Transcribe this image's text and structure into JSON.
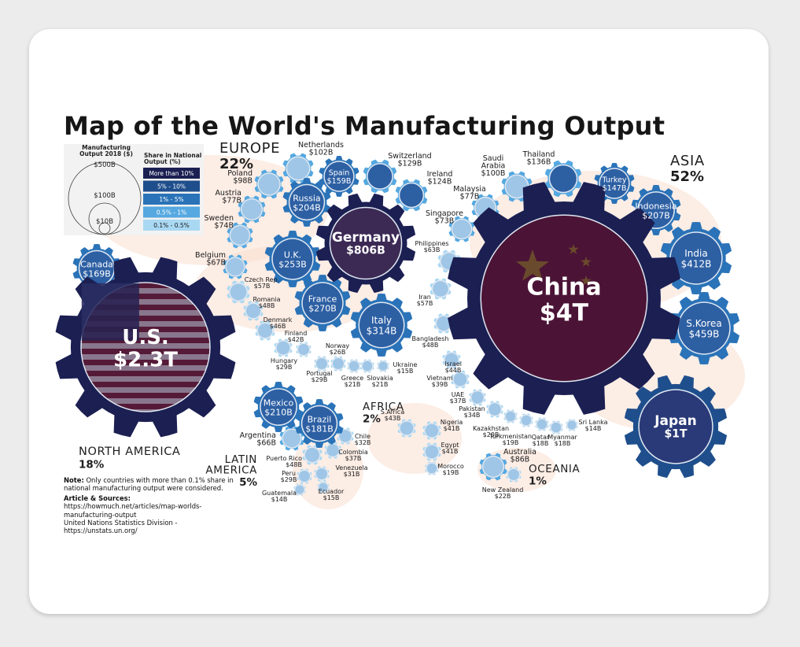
{
  "title": "Map of the World's Manufacturing Output",
  "legend": {
    "size_title": "Manufacturing\nOutput 2018 ($)",
    "size_labels": [
      "$500B",
      "$100B",
      "$10B"
    ],
    "share_title": "Share in National\nOutput (%)",
    "share_items": [
      {
        "label": "More than 10%",
        "color": "#1b1f52"
      },
      {
        "label": "5% - 10%",
        "color": "#1f4e8c"
      },
      {
        "label": "1% - 5%",
        "color": "#2a73b8"
      },
      {
        "label": "0.5% - 1%",
        "color": "#56a8e0"
      },
      {
        "label": "0.1% - 0.5%",
        "color": "#a9d8f3"
      }
    ]
  },
  "regions": [
    {
      "name": "EUROPE",
      "share": "22%"
    },
    {
      "name": "ASIA",
      "share": "52%"
    },
    {
      "name": "NORTH AMERICA",
      "share": "18%"
    },
    {
      "name": "LATIN\nAMERICA",
      "share": "5%"
    },
    {
      "name": "AFRICA",
      "share": "2%"
    },
    {
      "name": "OCEANIA",
      "share": "1%"
    }
  ],
  "countries": [
    {
      "name": "U.S.",
      "value": "$2.3T",
      "share_class": "More than 10%",
      "label_pos": "inside"
    },
    {
      "name": "China",
      "value": "$4T",
      "share_class": "More than 10%",
      "label_pos": "inside"
    },
    {
      "name": "Japan",
      "value": "$1T",
      "share_class": "5% - 10%",
      "label_pos": "inside"
    },
    {
      "name": "Germany",
      "value": "$806B",
      "share_class": "More than 10%",
      "label_pos": "inside"
    },
    {
      "name": "S.Korea",
      "value": "$459B",
      "share_class": "1% - 5%",
      "label_pos": "inside"
    },
    {
      "name": "India",
      "value": "$412B",
      "share_class": "1% - 5%",
      "label_pos": "inside"
    },
    {
      "name": "Italy",
      "value": "$314B",
      "share_class": "1% - 5%",
      "label_pos": "inside"
    },
    {
      "name": "France",
      "value": "$270B",
      "share_class": "1% - 5%",
      "label_pos": "inside"
    },
    {
      "name": "U.K.",
      "value": "$253B",
      "share_class": "1% - 5%",
      "label_pos": "inside"
    },
    {
      "name": "Mexico",
      "value": "$210B",
      "share_class": "1% - 5%",
      "label_pos": "inside"
    },
    {
      "name": "Indonesia",
      "value": "$207B",
      "share_class": "1% - 5%",
      "label_pos": "inside"
    },
    {
      "name": "Russia",
      "value": "$204B",
      "share_class": "1% - 5%",
      "label_pos": "inside"
    },
    {
      "name": "Brazil",
      "value": "$181B",
      "share_class": "1% - 5%",
      "label_pos": "inside"
    },
    {
      "name": "Canada",
      "value": "$169B",
      "share_class": "1% - 5%",
      "label_pos": "inside"
    },
    {
      "name": "Spain",
      "value": "$159B",
      "share_class": "1% - 5%",
      "label_pos": "inside"
    },
    {
      "name": "Turkey",
      "value": "$147B",
      "share_class": "1% - 5%",
      "label_pos": "inside"
    },
    {
      "name": "Thailand",
      "value": "$136B",
      "share_class": "0.5% - 1%",
      "label_pos": "outside"
    },
    {
      "name": "Switzerland",
      "value": "$129B",
      "share_class": "0.5% - 1%",
      "label_pos": "outside"
    },
    {
      "name": "Ireland",
      "value": "$124B",
      "share_class": "0.5% - 1%",
      "label_pos": "outside"
    },
    {
      "name": "Netherlands",
      "value": "$102B",
      "share_class": "0.5% - 1%",
      "label_pos": "outside"
    },
    {
      "name": "Saudi\nArabia",
      "value": "$100B",
      "share_class": "0.5% - 1%",
      "label_pos": "outside"
    },
    {
      "name": "Poland",
      "value": "$98B",
      "share_class": "0.5% - 1%",
      "label_pos": "outside"
    },
    {
      "name": "Austria",
      "value": "$77B",
      "share_class": "0.5% - 1%",
      "label_pos": "outside"
    },
    {
      "name": "Malaysia",
      "value": "$77B",
      "share_class": "0.5% - 1%",
      "label_pos": "outside"
    },
    {
      "name": "Sweden",
      "value": "$74B",
      "share_class": "0.5% - 1%",
      "label_pos": "outside"
    },
    {
      "name": "Singapore",
      "value": "$73B",
      "share_class": "0.5% - 1%",
      "label_pos": "outside"
    },
    {
      "name": "Belgium",
      "value": "$67B",
      "share_class": "0.5% - 1%",
      "label_pos": "outside"
    },
    {
      "name": "Argentina",
      "value": "$66B",
      "share_class": "0.5% - 1%",
      "label_pos": "outside"
    },
    {
      "name": "Philippines",
      "value": "$63B",
      "share_class": "0.1% - 0.5%",
      "label_pos": "outside"
    },
    {
      "name": "Czech Rep.",
      "value": "$57B",
      "share_class": "0.1% - 0.5%",
      "label_pos": "outside"
    },
    {
      "name": "Iran",
      "value": "$57B",
      "share_class": "0.1% - 0.5%",
      "label_pos": "outside"
    },
    {
      "name": "Romania",
      "value": "$48B",
      "share_class": "0.1% - 0.5%",
      "label_pos": "outside"
    },
    {
      "name": "Bangladesh",
      "value": "$48B",
      "share_class": "0.1% - 0.5%",
      "label_pos": "outside"
    },
    {
      "name": "Puerto Rico",
      "value": "$48B",
      "share_class": "0.1% - 0.5%",
      "label_pos": "outside"
    },
    {
      "name": "Denmark",
      "value": "$46B",
      "share_class": "0.1% - 0.5%",
      "label_pos": "outside"
    },
    {
      "name": "Israel",
      "value": "$44B",
      "share_class": "0.1% - 0.5%",
      "label_pos": "outside"
    },
    {
      "name": "S.Africa",
      "value": "$43B",
      "share_class": "0.1% - 0.5%",
      "label_pos": "outside"
    },
    {
      "name": "Finland",
      "value": "$42B",
      "share_class": "0.1% - 0.5%",
      "label_pos": "outside"
    },
    {
      "name": "Nigeria",
      "value": "$41B",
      "share_class": "0.1% - 0.5%",
      "label_pos": "outside"
    },
    {
      "name": "Egypt",
      "value": "$41B",
      "share_class": "0.1% - 0.5%",
      "label_pos": "outside"
    },
    {
      "name": "Vietnam",
      "value": "$39B",
      "share_class": "0.1% - 0.5%",
      "label_pos": "outside"
    },
    {
      "name": "UAE",
      "value": "$37B",
      "share_class": "0.1% - 0.5%",
      "label_pos": "outside"
    },
    {
      "name": "Colombia",
      "value": "$37B",
      "share_class": "0.1% - 0.5%",
      "label_pos": "outside"
    },
    {
      "name": "Pakistan",
      "value": "$34B",
      "share_class": "0.1% - 0.5%",
      "label_pos": "outside"
    },
    {
      "name": "Chile",
      "value": "$32B",
      "share_class": "0.1% - 0.5%",
      "label_pos": "outside"
    },
    {
      "name": "Venezuela",
      "value": "$31B",
      "share_class": "0.1% - 0.5%",
      "label_pos": "outside"
    },
    {
      "name": "Hungary",
      "value": "$29B",
      "share_class": "0.1% - 0.5%",
      "label_pos": "outside"
    },
    {
      "name": "Portugal",
      "value": "$29B",
      "share_class": "0.1% - 0.5%",
      "label_pos": "outside"
    },
    {
      "name": "Peru",
      "value": "$29B",
      "share_class": "0.1% - 0.5%",
      "label_pos": "outside"
    },
    {
      "name": "Norway",
      "value": "$26B",
      "share_class": "0.1% - 0.5%",
      "label_pos": "outside"
    },
    {
      "name": "Greece",
      "value": "$21B",
      "share_class": "0.1% - 0.5%",
      "label_pos": "outside"
    },
    {
      "name": "Slovakia",
      "value": "$21B",
      "share_class": "0.1% - 0.5%",
      "label_pos": "outside"
    },
    {
      "name": "New Zealand",
      "value": "$22B",
      "share_class": "0.1% - 0.5%",
      "label_pos": "outside"
    },
    {
      "name": "Kazakhstan",
      "value": "$20B",
      "share_class": "0.1% - 0.5%",
      "label_pos": "outside"
    },
    {
      "name": "Turkmenistan",
      "value": "$19B",
      "share_class": "0.1% - 0.5%",
      "label_pos": "outside"
    },
    {
      "name": "Morocco",
      "value": "$19B",
      "share_class": "0.1% - 0.5%",
      "label_pos": "outside"
    },
    {
      "name": "Qatar",
      "value": "$18B",
      "share_class": "0.1% - 0.5%",
      "label_pos": "outside"
    },
    {
      "name": "Myanmar",
      "value": "$18B",
      "share_class": "0.1% - 0.5%",
      "label_pos": "outside"
    },
    {
      "name": "Ukraine",
      "value": "$15B",
      "share_class": "0.1% - 0.5%",
      "label_pos": "outside"
    },
    {
      "name": "Ecuador",
      "value": "$15B",
      "share_class": "0.1% - 0.5%",
      "label_pos": "outside"
    },
    {
      "name": "Sri Lanka",
      "value": "$14B",
      "share_class": "0.1% - 0.5%",
      "label_pos": "outside"
    },
    {
      "name": "Guatemala",
      "value": "$14B",
      "share_class": "0.1% - 0.5%",
      "label_pos": "outside"
    },
    {
      "name": "Australia",
      "value": "$86B",
      "share_class": "0.5% - 1%",
      "label_pos": "outside"
    }
  ],
  "note": {
    "label": "Note:",
    "text": "Only countries with more than 0.1% share in national manufacturing output were considered.",
    "sources_label": "Article & Sources:",
    "sources": [
      "https://howmuch.net/articles/map-worlds-manufacturing-output",
      "United Nations Statistics Division - https://unstats.un.org/"
    ]
  },
  "colors": {
    "gear_dark": "#141b4d",
    "gear_mid": "#1f4e8c",
    "gear_light": "#2a73b8",
    "gear_pale": "#56a8e0",
    "gear_faint": "#a9d8f3",
    "china_fill": "#4b1436",
    "usa_fill": "#3a1f45",
    "map_bg": "#f9ded0"
  }
}
